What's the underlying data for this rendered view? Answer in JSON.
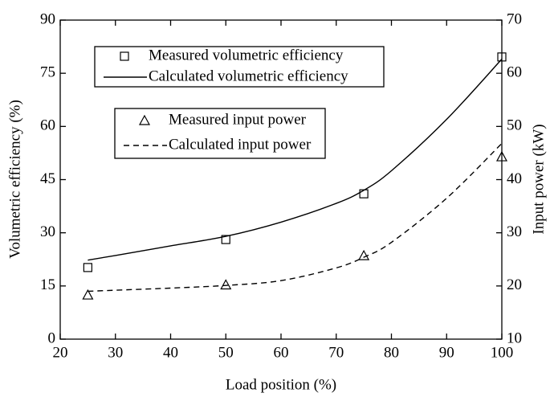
{
  "chart_data": {
    "type": "line",
    "xlabel": "Load position (%)",
    "ylabel": "Volumetric efficiency (%)",
    "y2label": "Input power (kW)",
    "xlim": [
      20,
      100
    ],
    "xticks": [
      20,
      30,
      40,
      50,
      60,
      70,
      80,
      90,
      100
    ],
    "ylim": [
      0,
      90
    ],
    "yticks": [
      0,
      15,
      30,
      45,
      60,
      75,
      90
    ],
    "y2lim": [
      10,
      70
    ],
    "y2ticks": [
      10,
      20,
      30,
      40,
      50,
      60,
      70
    ],
    "series": [
      {
        "name": "Measured volumetric efficiency",
        "color": "#000000",
        "style": "marker",
        "marker": "square",
        "axis": "y",
        "x": [
          25,
          50,
          75,
          100
        ],
        "values": [
          20.2,
          28.1,
          41,
          79.6
        ]
      },
      {
        "name": "Calculated volumetric efficiency",
        "color": "#000000",
        "style": "solid",
        "axis": "y",
        "x": [
          25,
          30,
          40,
          50,
          60,
          70,
          75,
          80,
          90,
          100
        ],
        "values": [
          22.3,
          23.6,
          26.3,
          29,
          33,
          38.3,
          42,
          47.5,
          62,
          79
        ]
      },
      {
        "name": "Measured input power",
        "color": "#000000",
        "style": "marker",
        "marker": "triangle",
        "axis": "y2",
        "x": [
          25,
          50,
          75,
          100
        ],
        "values": [
          18.3,
          20.2,
          25.7,
          44.3
        ]
      },
      {
        "name": "Calculated input power",
        "color": "#000000",
        "style": "dashed",
        "axis": "y2",
        "x": [
          25,
          30,
          40,
          50,
          60,
          70,
          75,
          80,
          90,
          100
        ],
        "values": [
          19,
          19.2,
          19.6,
          20.1,
          21,
          23.4,
          25.4,
          28.2,
          36.5,
          46.8
        ]
      }
    ]
  }
}
